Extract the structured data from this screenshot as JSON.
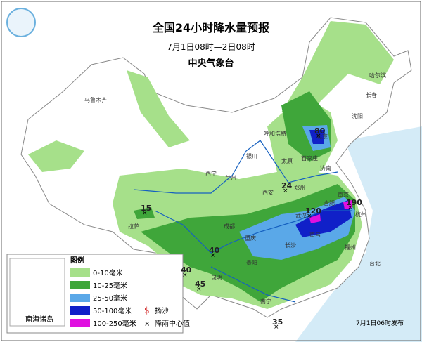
{
  "header": {
    "title": "全国24小时降水量预报",
    "period": "7月1日08时—2日08时",
    "issuer": "中央气象台"
  },
  "legend": {
    "title": "图例",
    "items": [
      {
        "label": "0-10毫米"
      },
      {
        "label": "10-25毫米"
      },
      {
        "label": "25-50毫米"
      },
      {
        "label": "50-100毫米"
      },
      {
        "label": "100-250毫米"
      }
    ],
    "symbols": [
      {
        "label": "扬沙"
      },
      {
        "label": "降雨中心值"
      }
    ]
  },
  "inset": {
    "label": "南海诸岛"
  },
  "cities": [
    {
      "label": "乌鲁木齐"
    },
    {
      "label": "呼和浩特"
    },
    {
      "label": "哈尔滨"
    },
    {
      "label": "长春"
    },
    {
      "label": "沈阳"
    },
    {
      "label": "北京"
    },
    {
      "label": "石家庄"
    },
    {
      "label": "太原"
    },
    {
      "label": "济南"
    },
    {
      "label": "郑州"
    },
    {
      "label": "西安"
    },
    {
      "label": "兰州"
    },
    {
      "label": "银川"
    },
    {
      "label": "西宁"
    },
    {
      "label": "成都"
    },
    {
      "label": "重庆"
    },
    {
      "label": "拉萨"
    },
    {
      "label": "贵阳"
    },
    {
      "label": "昆明"
    },
    {
      "label": "长沙"
    },
    {
      "label": "南昌"
    },
    {
      "label": "福州"
    },
    {
      "label": "台北"
    },
    {
      "label": "南宁"
    },
    {
      "label": "南京"
    },
    {
      "label": "杭州"
    },
    {
      "label": "合肥"
    },
    {
      "label": "武汉"
    }
  ],
  "rain_centers": [
    {
      "label": "80"
    },
    {
      "label": "24"
    },
    {
      "label": "15"
    },
    {
      "label": "120"
    },
    {
      "label": "190"
    },
    {
      "label": "40"
    },
    {
      "label": "40"
    },
    {
      "label": "45"
    },
    {
      "label": "35"
    }
  ],
  "footer": "7月1日06时发布"
}
